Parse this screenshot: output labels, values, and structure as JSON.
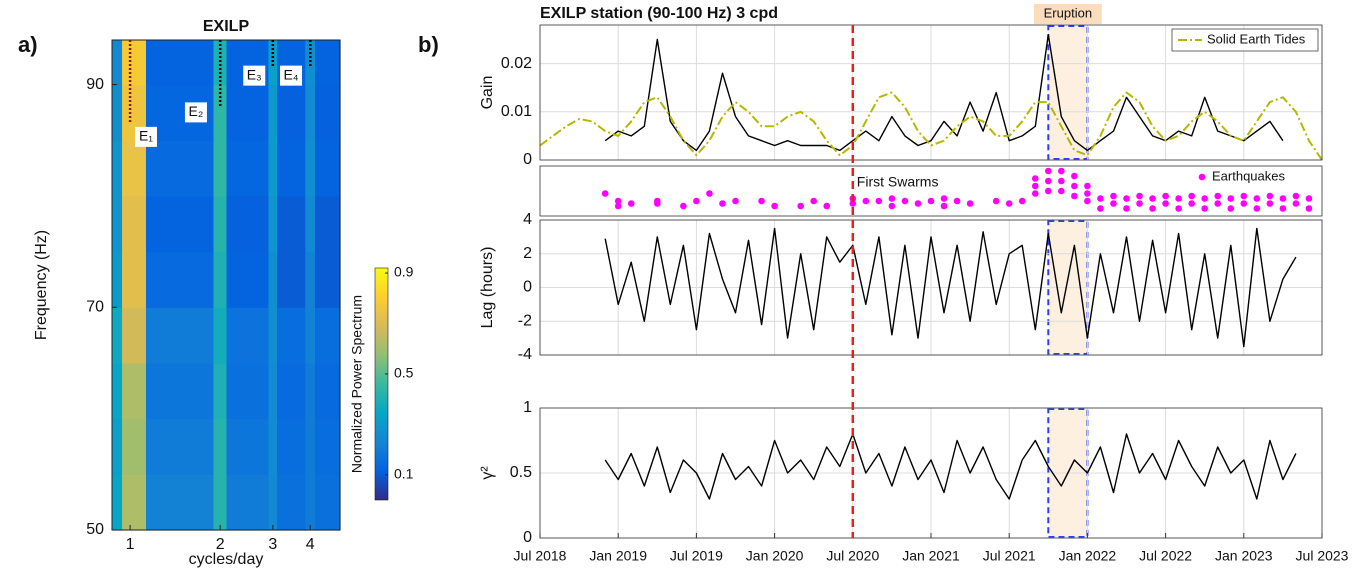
{
  "panel_labels": [
    "a)",
    "b)"
  ],
  "chart_data": [
    {
      "type": "heatmap",
      "title": "EXILP",
      "xlabel": "cycles/day",
      "ylabel": "Frequency (Hz)",
      "xscale": "log",
      "xlim": [
        0.87,
        5.03
      ],
      "ylim": [
        50,
        94
      ],
      "xticks": [
        1,
        2,
        3,
        4
      ],
      "yticks": [
        50,
        70,
        90
      ],
      "x_edges": [
        0.87,
        0.94,
        1.13,
        1.9,
        2.1,
        2.9,
        3.1,
        3.85,
        4.15,
        5.03
      ],
      "y_edges": [
        50,
        55,
        60,
        65,
        70,
        75,
        80,
        85,
        90,
        94
      ],
      "z": [
        [
          0.34,
          0.62,
          0.22,
          0.42,
          0.2,
          0.24,
          0.16,
          0.2,
          0.16
        ],
        [
          0.32,
          0.6,
          0.2,
          0.42,
          0.18,
          0.25,
          0.15,
          0.2,
          0.15
        ],
        [
          0.34,
          0.62,
          0.18,
          0.4,
          0.16,
          0.25,
          0.14,
          0.2,
          0.14
        ],
        [
          0.36,
          0.68,
          0.2,
          0.38,
          0.17,
          0.26,
          0.15,
          0.22,
          0.15
        ],
        [
          0.3,
          0.72,
          0.14,
          0.4,
          0.12,
          0.26,
          0.1,
          0.22,
          0.1
        ],
        [
          0.28,
          0.72,
          0.12,
          0.42,
          0.11,
          0.28,
          0.1,
          0.24,
          0.1
        ],
        [
          0.28,
          0.74,
          0.14,
          0.44,
          0.13,
          0.3,
          0.12,
          0.26,
          0.12
        ],
        [
          0.26,
          0.76,
          0.13,
          0.44,
          0.12,
          0.3,
          0.11,
          0.25,
          0.11
        ],
        [
          0.24,
          0.78,
          0.12,
          0.4,
          0.12,
          0.32,
          0.12,
          0.26,
          0.12
        ]
      ],
      "colormap": [
        "#352a87",
        "#0363e1",
        "#1485d4",
        "#06a7c6",
        "#38b99e",
        "#92bf73",
        "#d9ba56",
        "#fcce2e",
        "#f9fb0e"
      ],
      "clim": [
        0,
        0.92
      ],
      "colorbar_label": "Normalized Power Spectrum",
      "cticks": [
        0.1,
        0.5,
        0.9
      ],
      "annotations": [
        {
          "label": "E₁",
          "x": 1,
          "line_to": 86.5,
          "label_x": 1.13,
          "label_y": 85.3,
          "color": "#8b1a1a"
        },
        {
          "label": "E₂",
          "x": 2,
          "line_to": 88,
          "label_x": 1.66,
          "label_y": 87.5,
          "color": "#000000"
        },
        {
          "label": "E₃",
          "x": 3,
          "line_to": 91.5,
          "label_x": 2.6,
          "label_y": 90.8,
          "color": "#000000"
        },
        {
          "label": "E₄",
          "x": 4,
          "line_to": 91.5,
          "label_x": 3.45,
          "label_y": 90.8,
          "color": "#000000"
        }
      ]
    },
    {
      "type": "line",
      "title": "EXILP station (90-100 Hz) 3 cpd",
      "ylabel": "Gain",
      "xlim": [
        "2018-07",
        "2023-07"
      ],
      "ylim": [
        0,
        0.028
      ],
      "yticks": [
        0,
        0.01,
        0.02
      ],
      "grid": true,
      "legend": "upper right",
      "eruption": {
        "label": "Eruption",
        "start": "2021-10",
        "end": "2022-01"
      },
      "x": [
        "2018-07",
        "2018-08",
        "2018-09",
        "2018-10",
        "2018-11",
        "2018-12",
        "2019-01",
        "2019-02",
        "2019-03",
        "2019-04",
        "2019-05",
        "2019-06",
        "2019-07",
        "2019-08",
        "2019-09",
        "2019-10",
        "2019-11",
        "2019-12",
        "2020-01",
        "2020-02",
        "2020-03",
        "2020-04",
        "2020-05",
        "2020-06",
        "2020-07",
        "2020-08",
        "2020-09",
        "2020-10",
        "2020-11",
        "2020-12",
        "2021-01",
        "2021-02",
        "2021-03",
        "2021-04",
        "2021-05",
        "2021-06",
        "2021-07",
        "2021-08",
        "2021-09",
        "2021-10",
        "2021-11",
        "2021-12",
        "2022-01",
        "2022-02",
        "2022-03",
        "2022-04",
        "2022-05",
        "2022-06",
        "2022-07",
        "2022-08",
        "2022-09",
        "2022-10",
        "2022-11",
        "2022-12",
        "2023-01",
        "2023-02",
        "2023-03",
        "2023-04",
        "2023-05",
        "2023-06",
        "2023-07"
      ],
      "series": [
        {
          "color": "#000000",
          "values": [
            null,
            null,
            null,
            null,
            null,
            0.004,
            0.006,
            0.005,
            0.007,
            0.025,
            0.008,
            0.004,
            0.002,
            0.006,
            0.018,
            0.009,
            0.005,
            0.004,
            0.003,
            0.004,
            0.003,
            0.003,
            0.003,
            0.002,
            0.004,
            0.006,
            0.004,
            0.009,
            0.005,
            0.003,
            0.004,
            0.008,
            0.005,
            0.012,
            0.006,
            0.014,
            0.004,
            0.005,
            0.007,
            0.026,
            0.009,
            0.004,
            0.002,
            0.004,
            0.006,
            0.013,
            0.009,
            0.005,
            0.004,
            0.006,
            0.005,
            0.013,
            0.006,
            0.005,
            0.004,
            0.006,
            0.008,
            0.004,
            null,
            null,
            null
          ]
        },
        {
          "name": "Solid Earth Tides",
          "color": "#b5b800",
          "style": "dash-dot",
          "values": [
            0.003,
            0.005,
            0.007,
            0.0085,
            0.008,
            0.006,
            0.005,
            0.008,
            0.012,
            0.013,
            0.009,
            0.004,
            0.001,
            0.004,
            0.009,
            0.012,
            0.01,
            0.007,
            0.007,
            0.009,
            0.01,
            0.008,
            0.004,
            0.001,
            0.003,
            0.008,
            0.013,
            0.014,
            0.011,
            0.006,
            0.003,
            0.004,
            0.007,
            0.009,
            0.008,
            0.005,
            0.005,
            0.008,
            0.012,
            0.012,
            0.007,
            0.002,
            0.001,
            0.005,
            0.011,
            0.014,
            0.012,
            0.007,
            0.004,
            0.005,
            0.008,
            0.01,
            0.008,
            0.005,
            0.004,
            0.008,
            0.012,
            0.013,
            0.01,
            0.004,
            0
          ]
        }
      ]
    },
    {
      "type": "scatter",
      "xlim": [
        "2018-07",
        "2023-07"
      ],
      "ylim": [
        0,
        1
      ],
      "legend": "upper right",
      "first_swarms": {
        "label": "First Swarms",
        "date": "2020-07",
        "color": "#e8201a"
      },
      "x": [
        "2018-12",
        "2019-01",
        "2019-01",
        "2019-02",
        "2019-04",
        "2019-04",
        "2019-06",
        "2019-07",
        "2019-08",
        "2019-09",
        "2019-10",
        "2019-12",
        "2020-01",
        "2020-03",
        "2020-04",
        "2020-05",
        "2020-07",
        "2020-07",
        "2020-08",
        "2020-09",
        "2020-10",
        "2020-10",
        "2020-11",
        "2020-12",
        "2021-01",
        "2021-02",
        "2021-02",
        "2021-03",
        "2021-04",
        "2021-06",
        "2021-07",
        "2021-08",
        "2021-09",
        "2021-09",
        "2021-09",
        "2021-10",
        "2021-10",
        "2021-10",
        "2021-11",
        "2021-11",
        "2021-11",
        "2021-12",
        "2021-12",
        "2021-12",
        "2022-01",
        "2022-01",
        "2022-01",
        "2022-02",
        "2022-02",
        "2022-03",
        "2022-03",
        "2022-04",
        "2022-04",
        "2022-05",
        "2022-05",
        "2022-06",
        "2022-06",
        "2022-07",
        "2022-07",
        "2022-08",
        "2022-08",
        "2022-09",
        "2022-09",
        "2022-10",
        "2022-10",
        "2022-11",
        "2022-11",
        "2022-12",
        "2022-12",
        "2023-01",
        "2023-01",
        "2023-02",
        "2023-02",
        "2023-03",
        "2023-03",
        "2023-04",
        "2023-04",
        "2023-05",
        "2023-05",
        "2023-06",
        "2023-06"
      ],
      "series": [
        {
          "name": "Earthquakes",
          "color": "#ff00ff",
          "values": [
            0.45,
            0.2,
            0.3,
            0.25,
            0.25,
            0.3,
            0.2,
            0.3,
            0.45,
            0.25,
            0.3,
            0.3,
            0.2,
            0.2,
            0.3,
            0.2,
            0.35,
            0.25,
            0.3,
            0.3,
            0.35,
            0.2,
            0.3,
            0.25,
            0.3,
            0.35,
            0.2,
            0.3,
            0.25,
            0.3,
            0.25,
            0.3,
            0.45,
            0.6,
            0.75,
            0.5,
            0.7,
            0.9,
            0.5,
            0.7,
            0.9,
            0.4,
            0.6,
            0.8,
            0.3,
            0.45,
            0.6,
            0.15,
            0.35,
            0.25,
            0.4,
            0.15,
            0.35,
            0.25,
            0.4,
            0.15,
            0.35,
            0.25,
            0.4,
            0.15,
            0.35,
            0.25,
            0.4,
            0.15,
            0.35,
            0.25,
            0.4,
            0.15,
            0.35,
            0.25,
            0.4,
            0.15,
            0.35,
            0.25,
            0.4,
            0.15,
            0.35,
            0.25,
            0.4,
            0.15,
            0.35
          ]
        }
      ]
    },
    {
      "type": "line",
      "ylabel": "Lag (hours)",
      "xlim": [
        "2018-07",
        "2023-07"
      ],
      "ylim": [
        -4,
        4
      ],
      "yticks": [
        -4,
        -2,
        0,
        2,
        4
      ],
      "grid": true,
      "series": [
        {
          "color": "#000000",
          "values": [
            null,
            null,
            null,
            null,
            null,
            2.9,
            -1,
            1.5,
            -2,
            3,
            -1,
            2.5,
            -2.5,
            3.2,
            0.5,
            -1.5,
            2.8,
            -2.2,
            3.5,
            -3,
            2,
            -2.5,
            3,
            1.5,
            2.5,
            -1,
            3,
            -2.8,
            2.5,
            -3,
            3,
            -1.5,
            2.5,
            -2,
            3.3,
            -1,
            2,
            2.5,
            -2.5,
            3.2,
            -1.5,
            2.5,
            -3,
            2,
            -1.5,
            3,
            -2,
            2.8,
            -1.5,
            3.2,
            -2.5,
            2,
            -3,
            2.5,
            -3.5,
            3.5,
            -2,
            0.5,
            1.8,
            null,
            null
          ]
        }
      ]
    },
    {
      "type": "line",
      "ylabel": "γ²",
      "xlim": [
        "2018-07",
        "2023-07"
      ],
      "ylim": [
        0,
        1
      ],
      "yticks": [
        0,
        0.5,
        1
      ],
      "grid": true,
      "xticks": [
        {
          "value": "2018-07",
          "label": "Jul 2018"
        },
        {
          "value": "2019-01",
          "label": "Jan 2019"
        },
        {
          "value": "2019-07",
          "label": "Jul 2019"
        },
        {
          "value": "2020-01",
          "label": "Jan 2020"
        },
        {
          "value": "2020-07",
          "label": "Jul 2020"
        },
        {
          "value": "2021-01",
          "label": "Jan 2021"
        },
        {
          "value": "2021-07",
          "label": "Jul 2021"
        },
        {
          "value": "2022-01",
          "label": "Jan 2022"
        },
        {
          "value": "2022-07",
          "label": "Jul 2022"
        },
        {
          "value": "2023-01",
          "label": "Jan 2023"
        },
        {
          "value": "2023-07",
          "label": "Jul 2023"
        }
      ],
      "series": [
        {
          "color": "#000000",
          "values": [
            null,
            null,
            null,
            null,
            null,
            0.6,
            0.45,
            0.65,
            0.4,
            0.7,
            0.35,
            0.6,
            0.5,
            0.3,
            0.65,
            0.45,
            0.55,
            0.4,
            0.75,
            0.5,
            0.6,
            0.45,
            0.7,
            0.55,
            0.8,
            0.5,
            0.65,
            0.4,
            0.7,
            0.45,
            0.6,
            0.35,
            0.75,
            0.5,
            0.7,
            0.45,
            0.3,
            0.6,
            0.75,
            0.55,
            0.4,
            0.6,
            0.5,
            0.7,
            0.35,
            0.8,
            0.5,
            0.65,
            0.45,
            0.75,
            0.55,
            0.4,
            0.7,
            0.5,
            0.6,
            0.3,
            0.75,
            0.45,
            0.65,
            null,
            null
          ]
        }
      ]
    }
  ]
}
